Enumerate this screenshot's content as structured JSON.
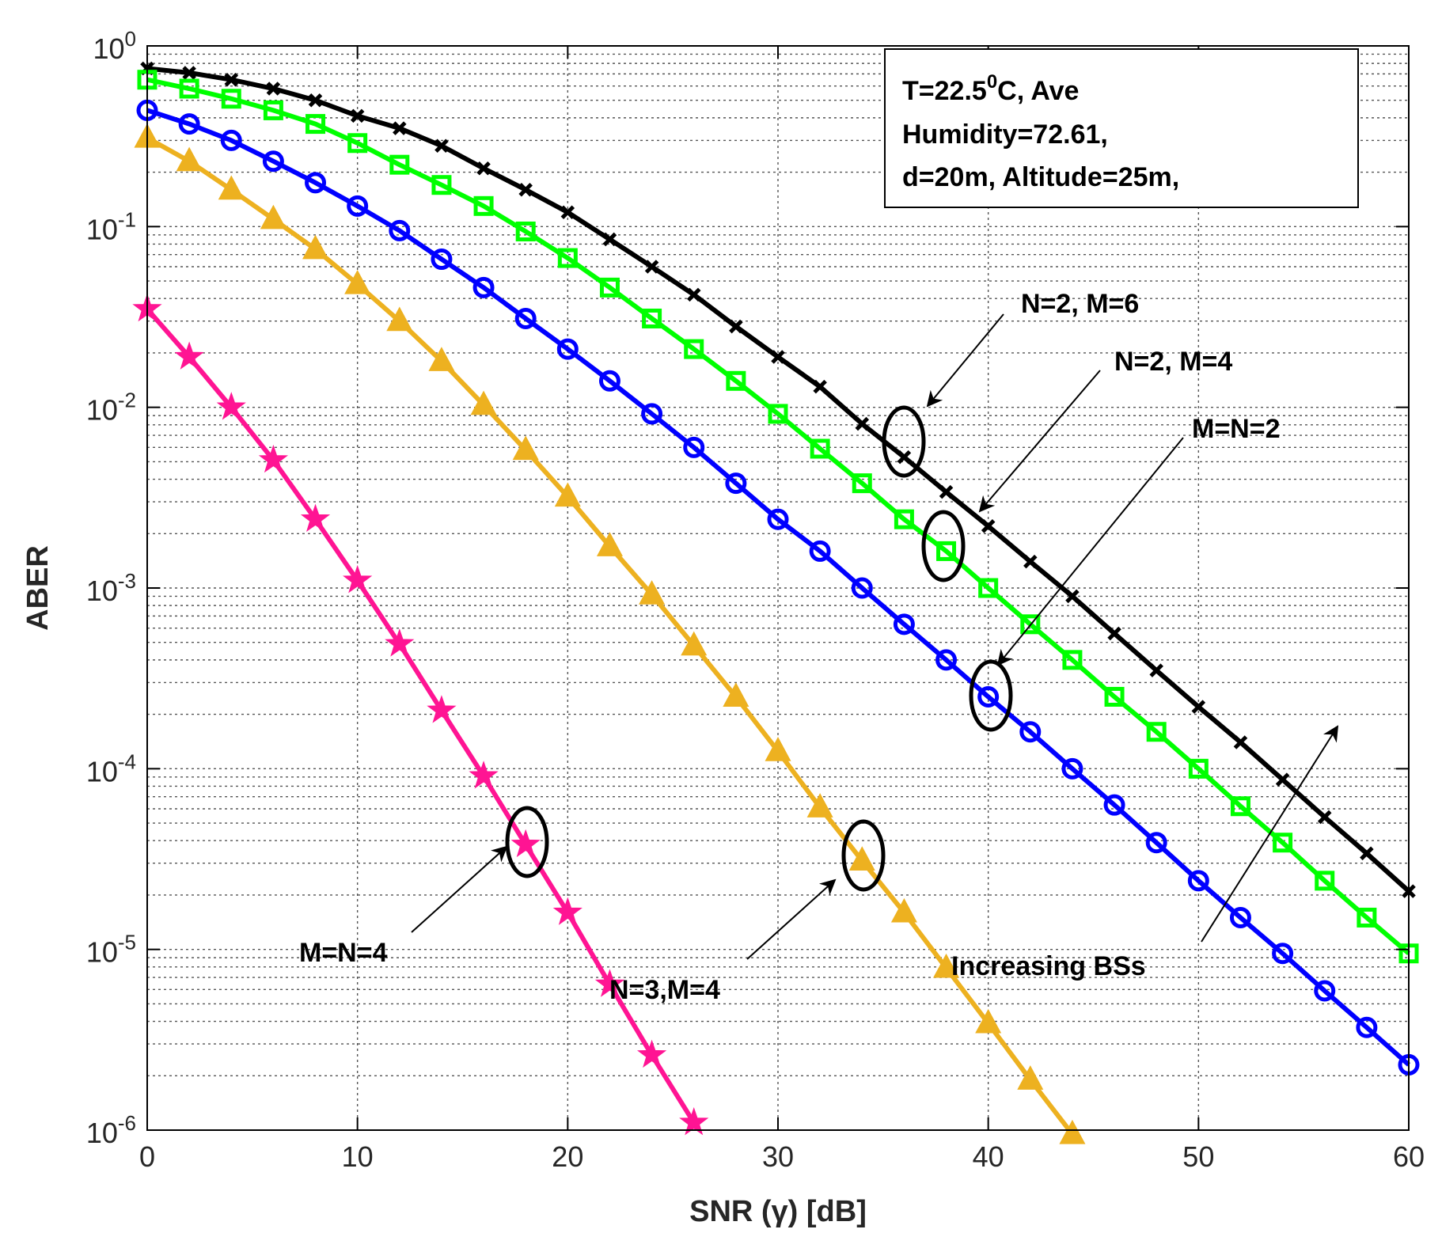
{
  "chart_data": {
    "type": "line",
    "xlabel": "SNR (γ) [dB]",
    "ylabel": "ABER",
    "x_scale": "linear",
    "y_scale": "log",
    "xlim": [
      0,
      60
    ],
    "ylim": [
      1e-06,
      1
    ],
    "x_ticks": [
      0,
      10,
      20,
      30,
      40,
      50,
      60
    ],
    "y_ticks": [
      {
        "value": 1,
        "base": "10",
        "exp": "0"
      },
      {
        "value": 0.1,
        "base": "10",
        "exp": "-1"
      },
      {
        "value": 0.01,
        "base": "10",
        "exp": "-2"
      },
      {
        "value": 0.001,
        "base": "10",
        "exp": "-3"
      },
      {
        "value": 0.0001,
        "base": "10",
        "exp": "-4"
      },
      {
        "value": 1e-05,
        "base": "10",
        "exp": "-5"
      },
      {
        "value": 1e-06,
        "base": "10",
        "exp": "-6"
      }
    ],
    "grid": true,
    "series": [
      {
        "name": "N=2, M=6",
        "color": "#000000",
        "marker": "x",
        "x_start": 0,
        "x_step": 2,
        "values": [
          0.75,
          0.71,
          0.65,
          0.58,
          0.5,
          0.41,
          0.35,
          0.28,
          0.21,
          0.16,
          0.12,
          0.085,
          0.06,
          0.042,
          0.028,
          0.019,
          0.013,
          0.0081,
          0.0053,
          0.0034,
          0.0022,
          0.0014,
          0.0009,
          0.00056,
          0.00035,
          0.00022,
          0.00014,
          8.7e-05,
          5.4e-05,
          3.4e-05,
          2.1e-05
        ]
      },
      {
        "name": "N=2, M=4",
        "color": "#00ff00",
        "marker": "square",
        "x_start": 0,
        "x_step": 2,
        "values": [
          0.65,
          0.58,
          0.51,
          0.44,
          0.37,
          0.29,
          0.22,
          0.17,
          0.13,
          0.094,
          0.067,
          0.046,
          0.031,
          0.021,
          0.014,
          0.0092,
          0.0059,
          0.0038,
          0.0024,
          0.0016,
          0.001,
          0.00063,
          0.0004,
          0.00025,
          0.00016,
          0.0001,
          6.2e-05,
          3.9e-05,
          2.4e-05,
          1.5e-05,
          9.5e-06
        ]
      },
      {
        "name": "M=N=2",
        "color": "#0000ff",
        "marker": "circle",
        "x_start": 0,
        "x_step": 2,
        "values": [
          0.44,
          0.37,
          0.3,
          0.23,
          0.175,
          0.13,
          0.095,
          0.066,
          0.046,
          0.031,
          0.021,
          0.014,
          0.0092,
          0.006,
          0.0038,
          0.0024,
          0.0016,
          0.001,
          0.00063,
          0.0004,
          0.00025,
          0.00016,
          0.0001,
          6.3e-05,
          3.9e-05,
          2.4e-05,
          1.5e-05,
          9.5e-06,
          5.9e-06,
          3.7e-06,
          2.3e-06
        ]
      },
      {
        "name": "N=3,M=4",
        "color": "#edb120",
        "marker": "triangle",
        "x_start": 0,
        "x_step": 2,
        "values": [
          0.31,
          0.23,
          0.16,
          0.11,
          0.075,
          0.048,
          0.03,
          0.018,
          0.0103,
          0.0058,
          0.0032,
          0.0017,
          0.00092,
          0.00048,
          0.00025,
          0.000125,
          6.1e-05,
          3.1e-05,
          1.6e-05,
          7.9e-06,
          3.9e-06,
          1.9e-06,
          9.5e-07
        ]
      },
      {
        "name": "M=N=4",
        "color": "#ff1493",
        "marker": "star",
        "x_start": 0,
        "x_step": 2,
        "values": [
          0.035,
          0.019,
          0.01,
          0.0051,
          0.0024,
          0.0011,
          0.00049,
          0.00021,
          9.1e-05,
          3.8e-05,
          1.6e-05,
          6.4e-06,
          2.6e-06,
          1.1e-06
        ]
      }
    ],
    "text_box": {
      "line1_pre": "T=22.5",
      "line1_sup": "0",
      "line1_post": "C, Ave",
      "line2": "Humidity=72.61,",
      "line3": "d=20m, Altitude=25m,"
    },
    "annotations": [
      {
        "text": "N=2, M=6",
        "point_x": 36
      },
      {
        "text": "N=2, M=4",
        "point_x": 38
      },
      {
        "text": "M=N=2",
        "point_x": 40
      },
      {
        "text": "M=N=4",
        "point_x": 18
      },
      {
        "text": "N=3,M=4",
        "point_x": 34
      },
      {
        "text": "Increasing BSs"
      }
    ]
  }
}
